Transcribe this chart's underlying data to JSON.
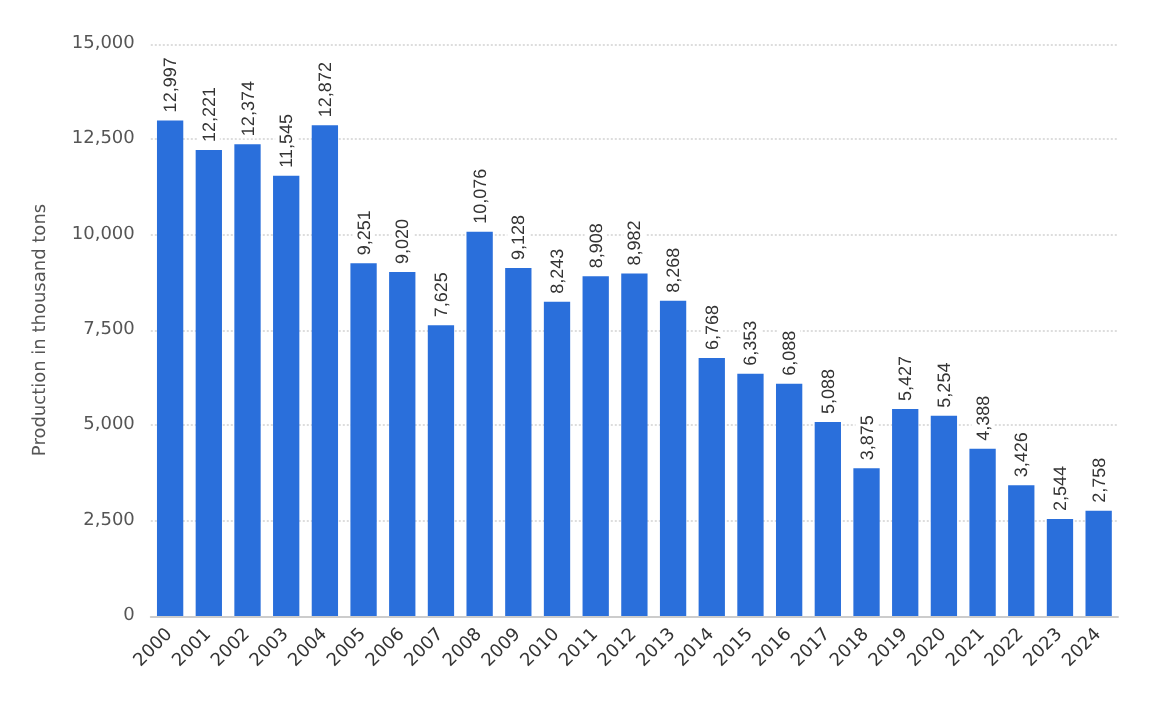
{
  "chart_data": {
    "type": "bar",
    "ylabel": "Production in thousand tons",
    "categories": [
      "2000",
      "2001",
      "2002",
      "2003",
      "2004",
      "2005",
      "2006",
      "2007",
      "2008",
      "2009",
      "2010",
      "2011",
      "2012",
      "2013",
      "2014",
      "2015",
      "2016",
      "2017",
      "2018",
      "2019",
      "2020",
      "2021",
      "2022",
      "2023",
      "2024"
    ],
    "values": [
      12997,
      12221,
      12374,
      11545,
      12872,
      9251,
      9020,
      7625,
      10076,
      9128,
      8243,
      8908,
      8982,
      8268,
      6768,
      6353,
      6088,
      5088,
      3875,
      5427,
      5254,
      4388,
      3426,
      2544,
      2758
    ],
    "value_labels": [
      "12,997",
      "12,221",
      "12,374",
      "11,545",
      "12,872",
      "9,251",
      "9,020",
      "7,625",
      "10,076",
      "9,128",
      "8,243",
      "8,908",
      "8,982",
      "8,268",
      "6,768",
      "6,353",
      "6,088",
      "5,088",
      "3,875",
      "5,427",
      "5,254",
      "4,388",
      "3,426",
      "2,544",
      "2,758"
    ],
    "color": "#2a6fdb",
    "ylim": [
      0,
      15000
    ],
    "yticks": [
      {
        "value": 0,
        "label": "0"
      },
      {
        "value": 2500,
        "label": "2,500"
      },
      {
        "value": 5000,
        "label": "5,000"
      },
      {
        "value": 7500,
        "label": "7,500"
      },
      {
        "value": 10000,
        "label": "10,000"
      },
      {
        "value": 12500,
        "label": "12,500"
      },
      {
        "value": 15000,
        "label": "15,000"
      }
    ],
    "grid": "y"
  }
}
